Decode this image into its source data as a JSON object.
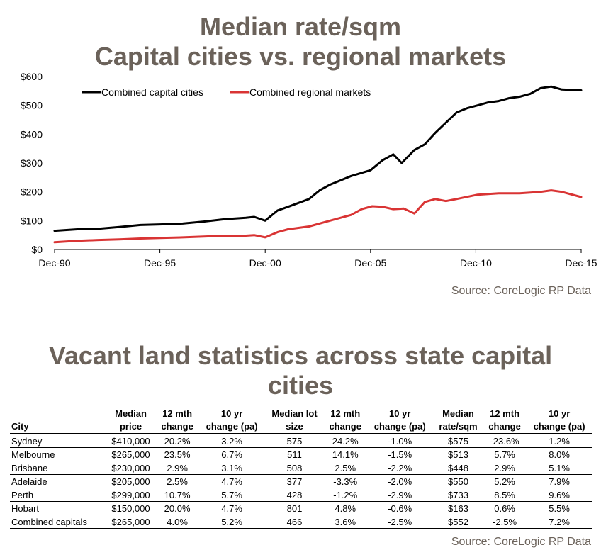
{
  "chart": {
    "title_line1": "Median rate/sqm",
    "title_line2": "Capital cities vs. regional markets",
    "source": "Source: CoreLogic RP Data"
  },
  "chart_data": {
    "type": "line",
    "title": "Median rate/sqm Capital cities vs. regional markets",
    "x_ticks": [
      "Dec-90",
      "Dec-95",
      "Dec-00",
      "Dec-05",
      "Dec-10",
      "Dec-15"
    ],
    "y_ticks": [
      "$0",
      "$100",
      "$200",
      "$300",
      "$400",
      "$500",
      "$600"
    ],
    "ylim": [
      0,
      600
    ],
    "xlim": [
      1990.92,
      2015.92
    ],
    "legend_position": "top-left",
    "grid": false,
    "series": [
      {
        "name": "Combined capital cities",
        "color": "#000000",
        "x": [
          1990.92,
          1992,
          1993,
          1994,
          1995,
          1995.92,
          1997,
          1998,
          1999,
          2000,
          2000.4,
          2000.92,
          2001.5,
          2002,
          2003,
          2003.5,
          2004,
          2005,
          2005.92,
          2006.5,
          2007,
          2007.4,
          2008,
          2008.5,
          2009,
          2009.5,
          2010,
          2010.5,
          2011,
          2011.5,
          2012,
          2012.5,
          2013,
          2013.5,
          2014,
          2014.5,
          2015,
          2015.92
        ],
        "y": [
          65,
          70,
          72,
          78,
          85,
          87,
          90,
          97,
          105,
          110,
          113,
          100,
          135,
          148,
          175,
          205,
          225,
          255,
          275,
          310,
          330,
          300,
          345,
          365,
          405,
          440,
          475,
          490,
          500,
          510,
          515,
          525,
          530,
          540,
          560,
          565,
          555,
          552
        ]
      },
      {
        "name": "Combined regional markets",
        "color": "#d93434",
        "x": [
          1990.92,
          1992,
          1993,
          1994,
          1995,
          1995.92,
          1997,
          1998,
          1999,
          2000,
          2000.4,
          2000.92,
          2001.5,
          2002,
          2003,
          2004,
          2005,
          2005.5,
          2006,
          2006.5,
          2007,
          2007.5,
          2008,
          2008.5,
          2009,
          2009.5,
          2010,
          2011,
          2012,
          2013,
          2014,
          2014.5,
          2015,
          2015.92
        ],
        "y": [
          25,
          30,
          33,
          35,
          38,
          40,
          42,
          45,
          48,
          48,
          50,
          42,
          60,
          70,
          80,
          100,
          120,
          140,
          150,
          148,
          140,
          142,
          125,
          165,
          175,
          168,
          175,
          190,
          195,
          195,
          200,
          205,
          200,
          182
        ]
      }
    ]
  },
  "table": {
    "title_line1": "Vacant land statistics across state capital",
    "title_line2": "cities",
    "source": "Source: CoreLogic RP Data",
    "headers": [
      [
        "",
        "City"
      ],
      [
        "Median",
        "price"
      ],
      [
        "12 mth",
        "change"
      ],
      [
        "10 yr",
        "change (pa)"
      ],
      [
        "Median lot",
        "size"
      ],
      [
        "12 mth",
        "change"
      ],
      [
        "10 yr",
        "change (pa)"
      ],
      [
        "Median",
        "rate/sqm"
      ],
      [
        "12 mth",
        "change"
      ],
      [
        "10 yr",
        "change (pa)"
      ]
    ],
    "rows": [
      [
        "Sydney",
        "$410,000",
        "20.2%",
        "3.2%",
        "575",
        "24.2%",
        "-1.0%",
        "$575",
        "-23.6%",
        "1.2%"
      ],
      [
        "Melbourne",
        "$265,000",
        "23.5%",
        "6.7%",
        "511",
        "14.1%",
        "-1.5%",
        "$513",
        "5.7%",
        "8.0%"
      ],
      [
        "Brisbane",
        "$230,000",
        "2.9%",
        "3.1%",
        "508",
        "2.5%",
        "-2.2%",
        "$448",
        "2.9%",
        "5.1%"
      ],
      [
        "Adelaide",
        "$205,000",
        "2.5%",
        "4.7%",
        "377",
        "-3.3%",
        "-2.0%",
        "$550",
        "5.2%",
        "7.9%"
      ],
      [
        "Perth",
        "$299,000",
        "10.7%",
        "5.7%",
        "428",
        "-1.2%",
        "-2.9%",
        "$733",
        "8.5%",
        "9.6%"
      ],
      [
        "Hobart",
        "$150,000",
        "20.0%",
        "4.7%",
        "801",
        "4.8%",
        "-0.6%",
        "$163",
        "0.6%",
        "5.5%"
      ],
      [
        "Combined capitals",
        "$265,000",
        "4.0%",
        "5.2%",
        "466",
        "3.6%",
        "-2.5%",
        "$552",
        "-2.5%",
        "7.2%"
      ]
    ]
  }
}
